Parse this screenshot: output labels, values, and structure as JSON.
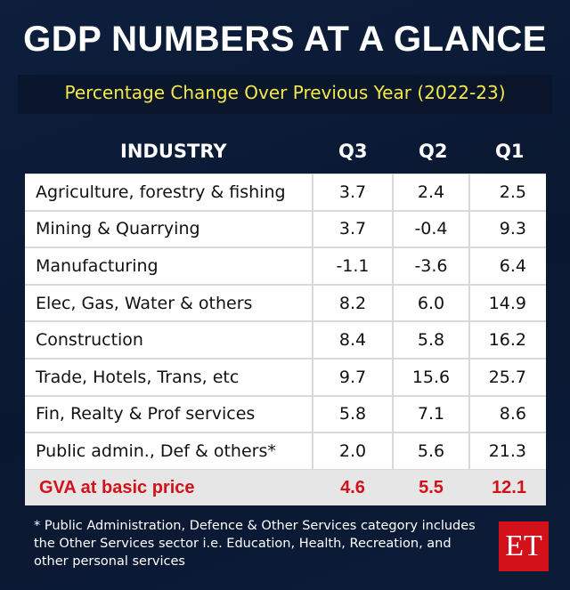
{
  "header": {
    "title": "GDP NUMBERS AT A GLANCE",
    "subtitle": "Percentage Change Over Previous Year (2022-23)"
  },
  "table": {
    "columns": [
      "INDUSTRY",
      "Q3",
      "Q2",
      "Q1"
    ],
    "rows": [
      [
        "Agriculture, forestry & fishing",
        "3.7",
        "2.4",
        "2.5"
      ],
      [
        "Mining & Quarrying",
        "3.7",
        "-0.4",
        "9.3"
      ],
      [
        "Manufacturing",
        "-1.1",
        "-3.6",
        "6.4"
      ],
      [
        "Elec, Gas, Water & others",
        "8.2",
        "6.0",
        "14.9"
      ],
      [
        "Construction",
        "8.4",
        "5.8",
        "16.2"
      ],
      [
        "Trade, Hotels, Trans, etc",
        "9.7",
        "15.6",
        "25.7"
      ],
      [
        "Fin, Realty & Prof services",
        "5.8",
        "7.1",
        "8.6"
      ],
      [
        "Public admin., Def & others*",
        "2.0",
        "5.6",
        "21.3"
      ]
    ],
    "total": [
      "GVA at basic price",
      "4.6",
      "5.5",
      "12.1"
    ]
  },
  "footnote": "* Public Administration, Defence & Other Services category includes the Other Services sector i.e. Education, Health, Recreation, and other personal services",
  "logo": "ET"
}
